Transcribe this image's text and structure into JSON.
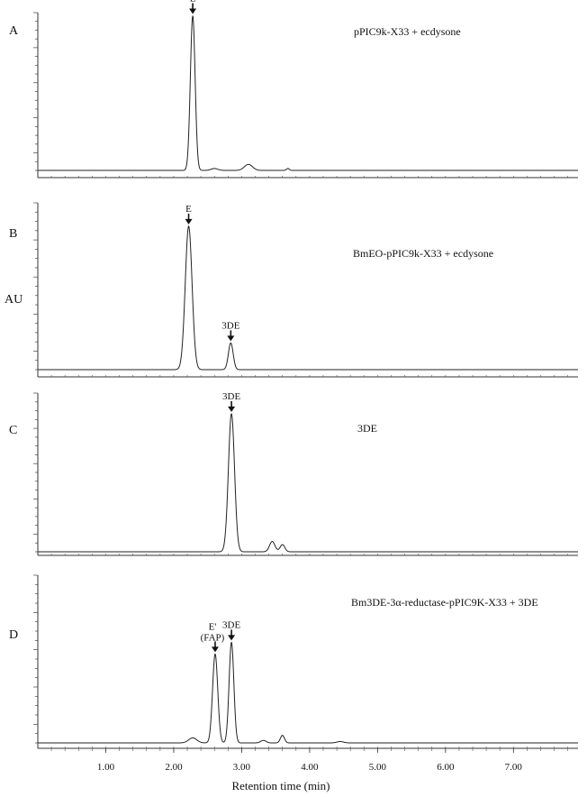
{
  "chart_data": {
    "type": "line",
    "ylabel": "AU",
    "xlabel": "Retention time (min)",
    "xlim": [
      0,
      7.95
    ],
    "x_ticks": [
      "1.00",
      "2.00",
      "3.00",
      "4.00",
      "5.00",
      "6.00",
      "7.00"
    ],
    "x_tick_values": [
      1,
      2,
      3,
      4,
      5,
      6,
      7
    ],
    "grid": false,
    "panels": [
      {
        "label": "A",
        "legend": "pPIC9k-X33 + ecdysone",
        "peaks": [
          {
            "t": 2.28,
            "h": 0.98,
            "w": 0.035
          },
          {
            "t": 2.6,
            "h": 0.012,
            "w": 0.05
          },
          {
            "t": 3.1,
            "h": 0.038,
            "w": 0.06
          },
          {
            "t": 3.68,
            "h": 0.012,
            "w": 0.02
          }
        ],
        "annotations": [
          {
            "text": "E",
            "t": 2.28
          }
        ]
      },
      {
        "label": "B",
        "legend": "BmEO-pPIC9k-X33 + ecdysone",
        "peaks": [
          {
            "t": 2.22,
            "h": 0.86,
            "w": 0.05
          },
          {
            "t": 2.84,
            "h": 0.16,
            "w": 0.035
          }
        ],
        "annotations": [
          {
            "text": "E",
            "t": 2.22
          },
          {
            "text": "3DE",
            "t": 2.84
          }
        ]
      },
      {
        "label": "C",
        "legend": "3DE",
        "peaks": [
          {
            "t": 2.85,
            "h": 0.87,
            "w": 0.045
          },
          {
            "t": 3.45,
            "h": 0.065,
            "w": 0.04
          },
          {
            "t": 3.6,
            "h": 0.045,
            "w": 0.035
          }
        ],
        "annotations": [
          {
            "text": "3DE",
            "t": 2.85
          }
        ]
      },
      {
        "label": "D",
        "legend": "Bm3DE-3α-reductase-pPIC9K-X33 + 3DE",
        "peaks": [
          {
            "t": 2.28,
            "h": 0.03,
            "w": 0.06
          },
          {
            "t": 2.61,
            "h": 0.53,
            "w": 0.038
          },
          {
            "t": 2.85,
            "h": 0.6,
            "w": 0.035
          },
          {
            "t": 3.32,
            "h": 0.015,
            "w": 0.04
          },
          {
            "t": 3.6,
            "h": 0.045,
            "w": 0.03
          },
          {
            "t": 4.45,
            "h": 0.008,
            "w": 0.05
          }
        ],
        "annotations": [
          {
            "text": "E'",
            "sub": "(FAP)",
            "t": 2.61
          },
          {
            "text": "3DE",
            "t": 2.85
          }
        ]
      }
    ]
  }
}
